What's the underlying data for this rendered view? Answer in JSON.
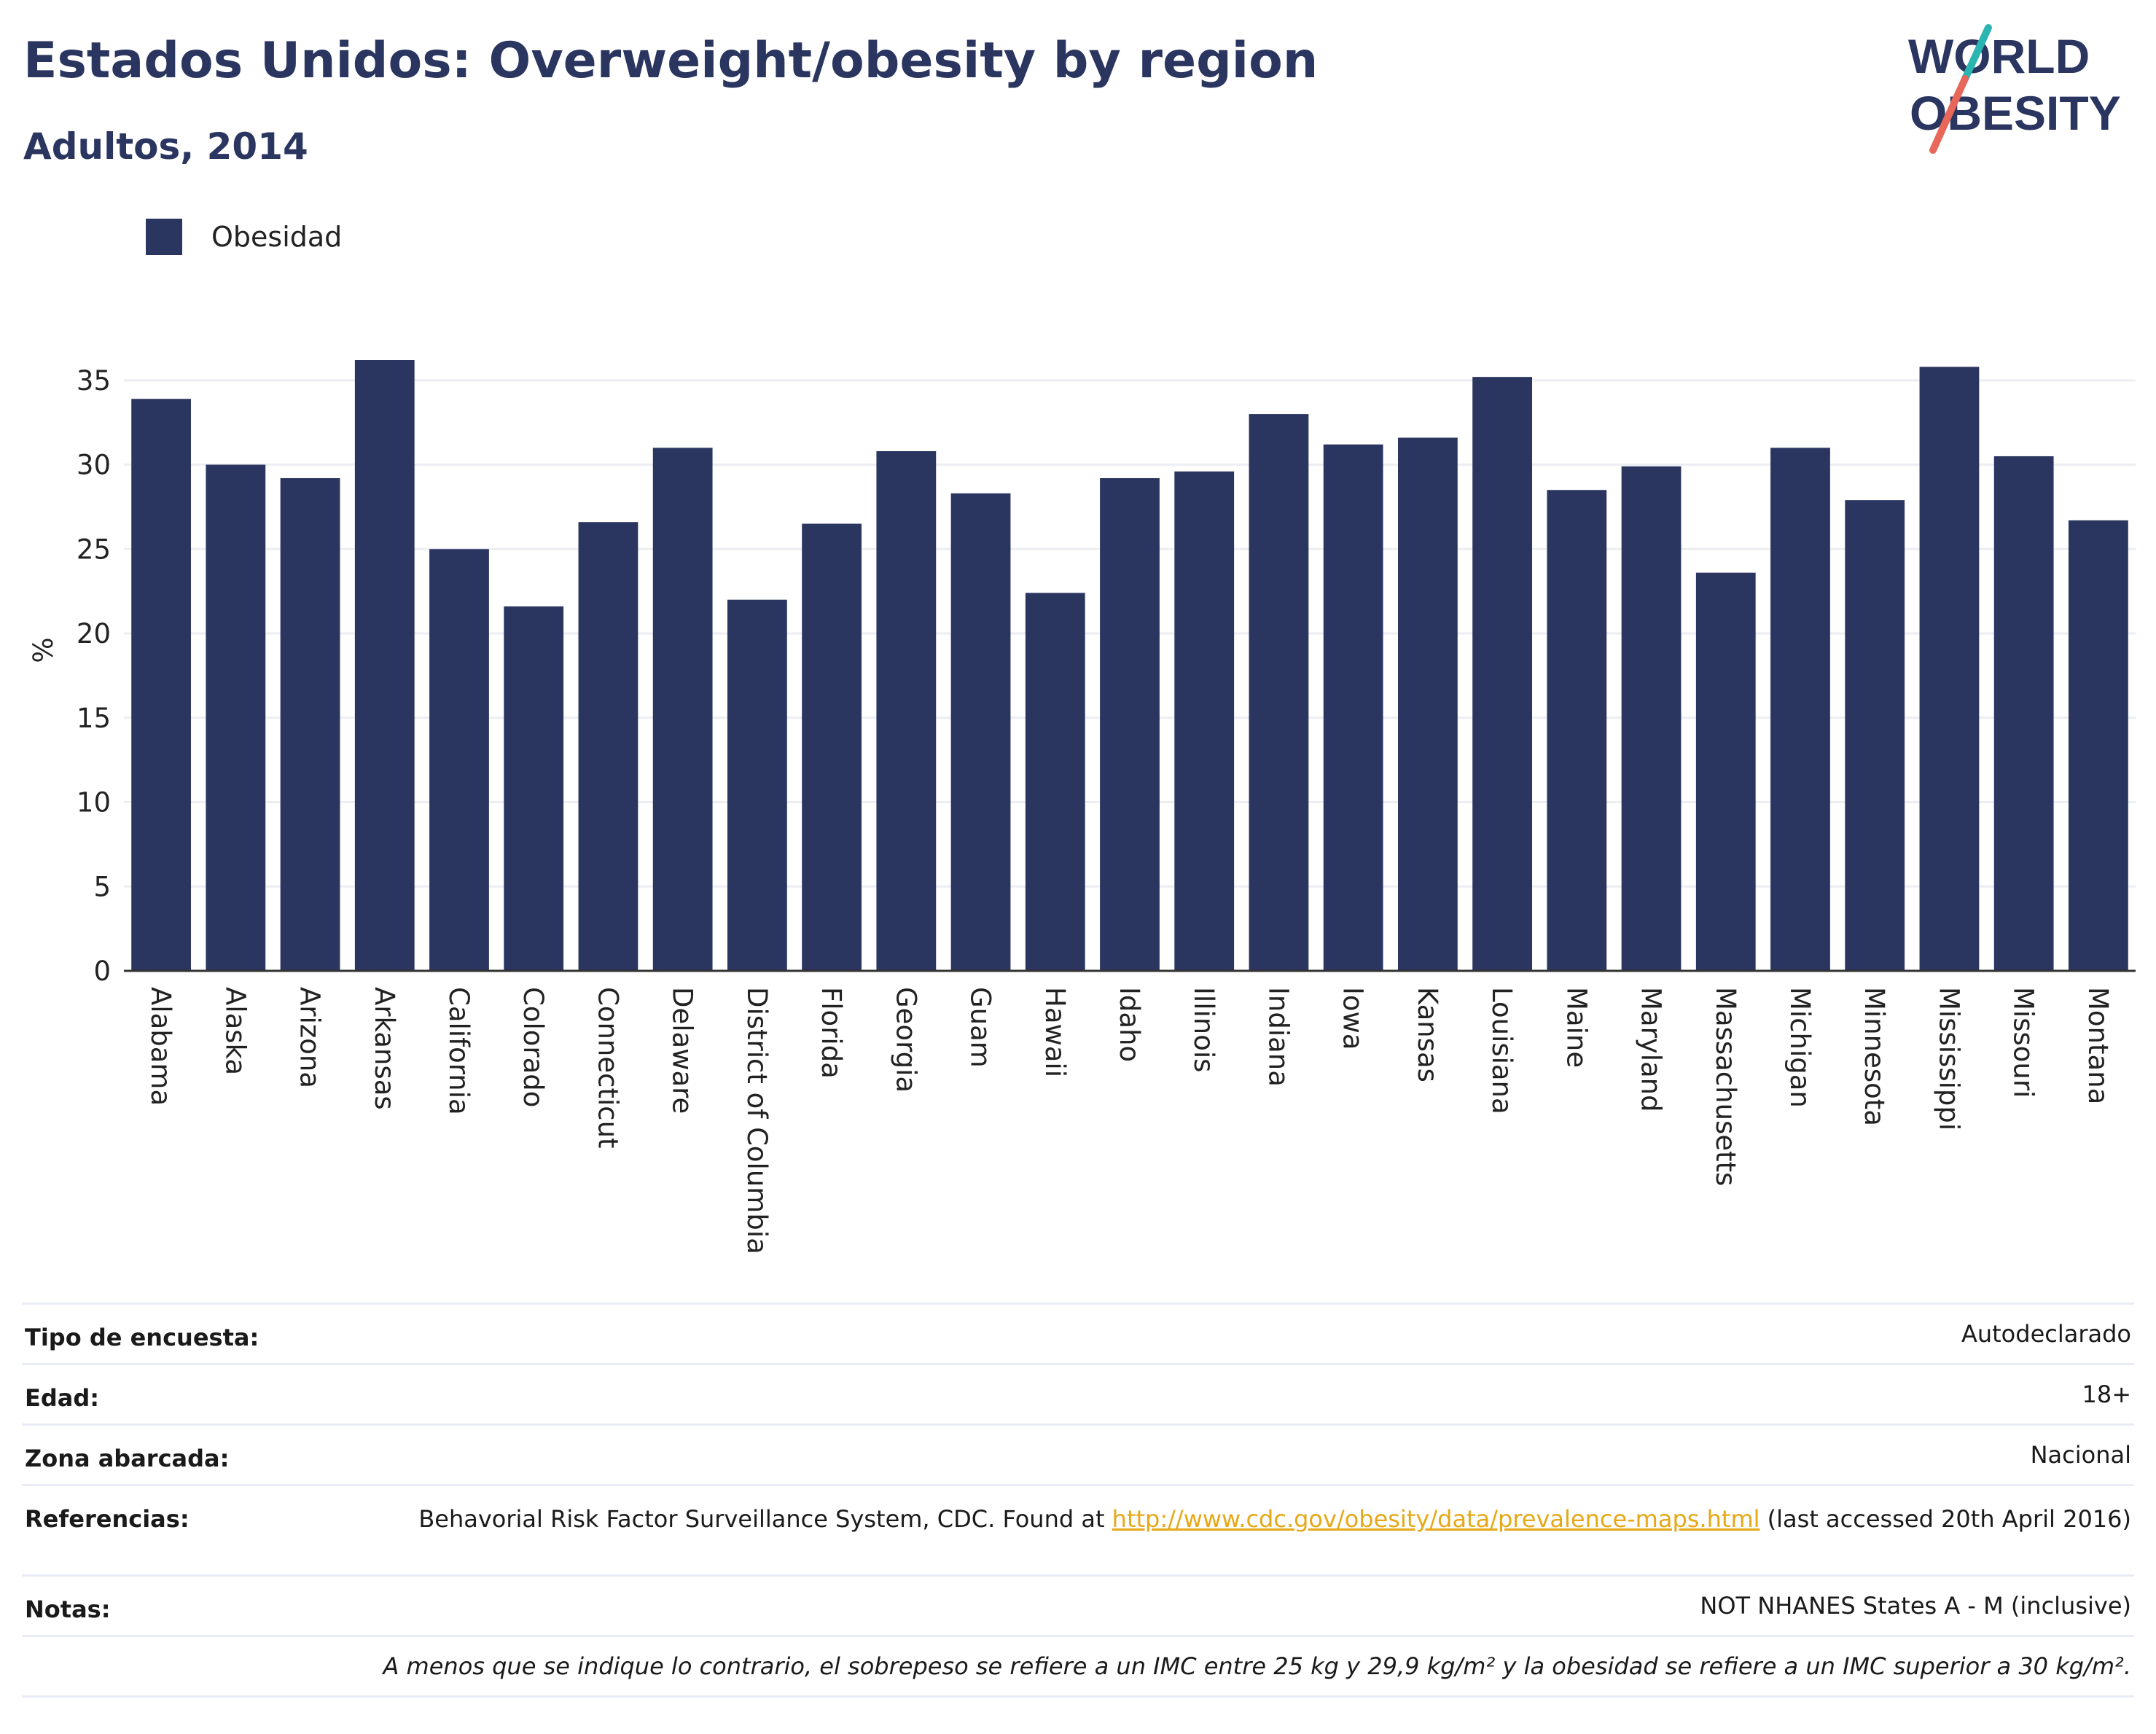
{
  "header": {
    "title": "Estados Unidos: Overweight/obesity by region",
    "subtitle": "Adultos, 2014"
  },
  "logo": {
    "line1": "WORLD",
    "line2": "OBESITY"
  },
  "legend": {
    "label": "Obesidad"
  },
  "chart_data": {
    "type": "bar",
    "title": "Estados Unidos: Overweight/obesity by region",
    "subtitle": "Adultos, 2014",
    "xlabel": "",
    "ylabel": "%",
    "ylim": [
      0,
      36.2
    ],
    "yticks": [
      0,
      5,
      10,
      15,
      20,
      25,
      30,
      35
    ],
    "grid": true,
    "legend_position": "top-left",
    "bar_color": "#2a3560",
    "categories": [
      "Alabama",
      "Alaska",
      "Arizona",
      "Arkansas",
      "California",
      "Colorado",
      "Connecticut",
      "Delaware",
      "District of Columbia",
      "Florida",
      "Georgia",
      "Guam",
      "Hawaii",
      "Idaho",
      "Illinois",
      "Indiana",
      "Iowa",
      "Kansas",
      "Louisiana",
      "Maine",
      "Maryland",
      "Massachusetts",
      "Michigan",
      "Minnesota",
      "Mississippi",
      "Missouri",
      "Montana"
    ],
    "series": [
      {
        "name": "Obesidad",
        "values": [
          33.9,
          30.0,
          29.2,
          36.2,
          25.0,
          21.6,
          26.6,
          31.0,
          22.0,
          26.5,
          30.8,
          28.3,
          22.4,
          29.2,
          29.6,
          33.0,
          31.2,
          31.6,
          35.2,
          28.5,
          29.9,
          23.6,
          31.0,
          27.9,
          35.8,
          30.5,
          26.7
        ]
      }
    ]
  },
  "info": {
    "survey_label": "Tipo de encuesta:",
    "survey_value": "Autodeclarado",
    "age_label": "Edad:",
    "age_value": "18+",
    "area_label": "Zona abarcada:",
    "area_value": "Nacional",
    "refs_label": "Referencias:",
    "refs_prefix": "Behavorial Risk Factor Surveillance System, CDC. Found at ",
    "refs_link": "http://www.cdc.gov/obesity/data/prevalence-maps.html",
    "refs_suffix": " (last accessed 20th April 2016)",
    "notes_label": "Notas:",
    "notes_value": "NOT NHANES States A - M (inclusive)",
    "footnote": "A menos que se indique lo contrario, el sobrepeso se refiere a un IMC entre 25 kg y 29,9 kg/m² y la obesidad se refiere a un IMC superior a 30 kg/m²."
  }
}
